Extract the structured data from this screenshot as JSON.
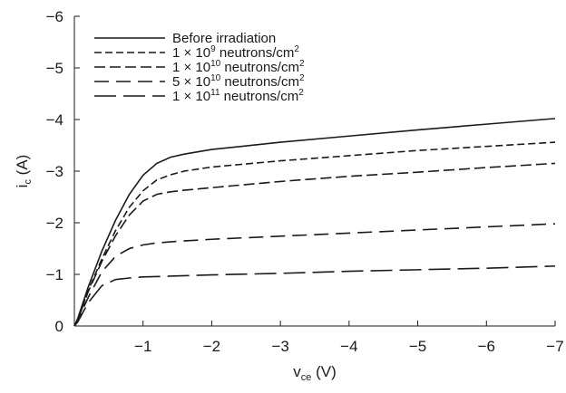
{
  "chart_data": {
    "type": "line",
    "xlabel": {
      "main": "v",
      "sub": "ce",
      "unit": "(V)"
    },
    "ylabel": {
      "main": "i",
      "sub": "c",
      "unit": "(A)"
    },
    "xlim": [
      0,
      -7
    ],
    "ylim": [
      0,
      -6
    ],
    "x_ticks": [
      {
        "value": -1,
        "label": "−1"
      },
      {
        "value": -2,
        "label": "−2"
      },
      {
        "value": -3,
        "label": "−3"
      },
      {
        "value": -4,
        "label": "−4"
      },
      {
        "value": -5,
        "label": "−5"
      },
      {
        "value": -6,
        "label": "−6"
      },
      {
        "value": -7,
        "label": "−7"
      }
    ],
    "y_ticks": [
      {
        "value": 0,
        "label": "0"
      },
      {
        "value": -1,
        "label": "−1"
      },
      {
        "value": -2,
        "label": "−2"
      },
      {
        "value": -3,
        "label": "−3"
      },
      {
        "value": -4,
        "label": "−4"
      },
      {
        "value": -5,
        "label": "−5"
      },
      {
        "value": -6,
        "label": "−6"
      }
    ],
    "grid": false,
    "legend_position": "top-left",
    "series": [
      {
        "name": "Before irradiation",
        "legend": {
          "prefix": "Before irradiation",
          "exp": "",
          "suffix": ""
        },
        "dash": "solid",
        "x": [
          0,
          -0.05,
          -0.2,
          -0.4,
          -0.6,
          -0.8,
          -1.0,
          -1.2,
          -1.4,
          -1.6,
          -2.0,
          -3.0,
          -4.0,
          -5.0,
          -6.0,
          -7.0
        ],
        "y": [
          0,
          -0.15,
          -0.75,
          -1.45,
          -2.05,
          -2.55,
          -2.92,
          -3.15,
          -3.27,
          -3.33,
          -3.42,
          -3.56,
          -3.68,
          -3.8,
          -3.91,
          -4.02
        ]
      },
      {
        "name": "1 × 10^9 neutrons/cm^2",
        "legend": {
          "prefix": "1 × 10",
          "exp": "9",
          "suffix": " neutrons/cm",
          "suffix_exp": "2"
        },
        "dash": "dashed",
        "x": [
          0,
          -0.05,
          -0.2,
          -0.4,
          -0.6,
          -0.8,
          -1.0,
          -1.2,
          -1.4,
          -1.6,
          -2.0,
          -3.0,
          -4.0,
          -5.0,
          -6.0,
          -7.0
        ],
        "y": [
          0,
          -0.12,
          -0.68,
          -1.3,
          -1.85,
          -2.3,
          -2.62,
          -2.83,
          -2.93,
          -3.0,
          -3.08,
          -3.2,
          -3.3,
          -3.4,
          -3.48,
          -3.56
        ]
      },
      {
        "name": "1 × 10^10 neutrons/cm^2",
        "legend": {
          "prefix": "1 × 10",
          "exp": "10",
          "suffix": " neutrons/cm",
          "suffix_exp": "2"
        },
        "dash": "dashed",
        "x": [
          0,
          -0.05,
          -0.2,
          -0.4,
          -0.6,
          -0.8,
          -1.0,
          -1.2,
          -1.4,
          -1.6,
          -2.0,
          -3.0,
          -4.0,
          -5.0,
          -6.0,
          -7.0
        ],
        "y": [
          0,
          -0.12,
          -0.66,
          -1.25,
          -1.75,
          -2.15,
          -2.42,
          -2.55,
          -2.6,
          -2.63,
          -2.68,
          -2.8,
          -2.9,
          -2.98,
          -3.07,
          -3.15
        ]
      },
      {
        "name": "5 × 10^10 neutrons/cm^2",
        "legend": {
          "prefix": "5 × 10",
          "exp": "10",
          "suffix": " neutrons/cm",
          "suffix_exp": "2"
        },
        "dash": "dashed",
        "x": [
          0,
          -0.05,
          -0.2,
          -0.4,
          -0.6,
          -0.8,
          -1.0,
          -1.2,
          -1.5,
          -2.0,
          -3.0,
          -4.0,
          -5.0,
          -6.0,
          -7.0
        ],
        "y": [
          0,
          -0.1,
          -0.55,
          -1.05,
          -1.35,
          -1.5,
          -1.57,
          -1.61,
          -1.64,
          -1.68,
          -1.74,
          -1.8,
          -1.86,
          -1.92,
          -1.98
        ]
      },
      {
        "name": "1 × 10^11 neutrons/cm^2",
        "legend": {
          "prefix": "1 × 10",
          "exp": "11",
          "suffix": " neutrons/cm",
          "suffix_exp": "2"
        },
        "dash": "dashed",
        "x": [
          0,
          -0.05,
          -0.2,
          -0.4,
          -0.6,
          -0.8,
          -1.0,
          -1.5,
          -2.0,
          -3.0,
          -4.0,
          -5.0,
          -6.0,
          -7.0
        ],
        "y": [
          0,
          -0.08,
          -0.45,
          -0.78,
          -0.9,
          -0.93,
          -0.95,
          -0.97,
          -0.99,
          -1.02,
          -1.06,
          -1.09,
          -1.12,
          -1.16
        ]
      }
    ]
  }
}
